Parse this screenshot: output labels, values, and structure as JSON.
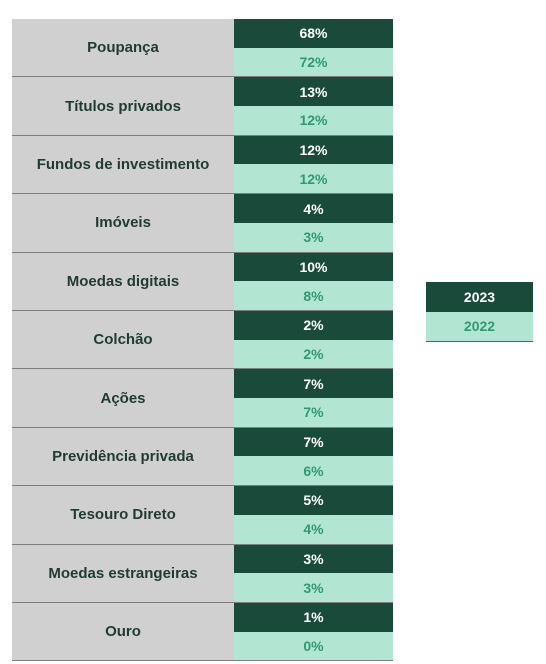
{
  "chart_data": {
    "type": "table",
    "series": [
      {
        "name": "2023",
        "values": [
          "68%",
          "13%",
          "12%",
          "4%",
          "10%",
          "2%",
          "7%",
          "7%",
          "5%",
          "3%",
          "1%"
        ]
      },
      {
        "name": "2022",
        "values": [
          "72%",
          "12%",
          "12%",
          "3%",
          "8%",
          "2%",
          "7%",
          "6%",
          "4%",
          "3%",
          "0%"
        ]
      }
    ],
    "categories": [
      "Poupança",
      "Títulos privados",
      "Fundos de investimento",
      "Imóveis",
      "Moedas digitais",
      "Colchão",
      "Ações",
      "Previdência privada",
      "Tesouro Direto",
      "Moedas estrangeiras",
      "Ouro"
    ],
    "colors": {
      "2023": "#1a4a3a",
      "2022": "#b2e6d3",
      "label_bg": "#d0d0d0"
    }
  },
  "legend": [
    {
      "label": "2023"
    },
    {
      "label": "2022"
    }
  ]
}
